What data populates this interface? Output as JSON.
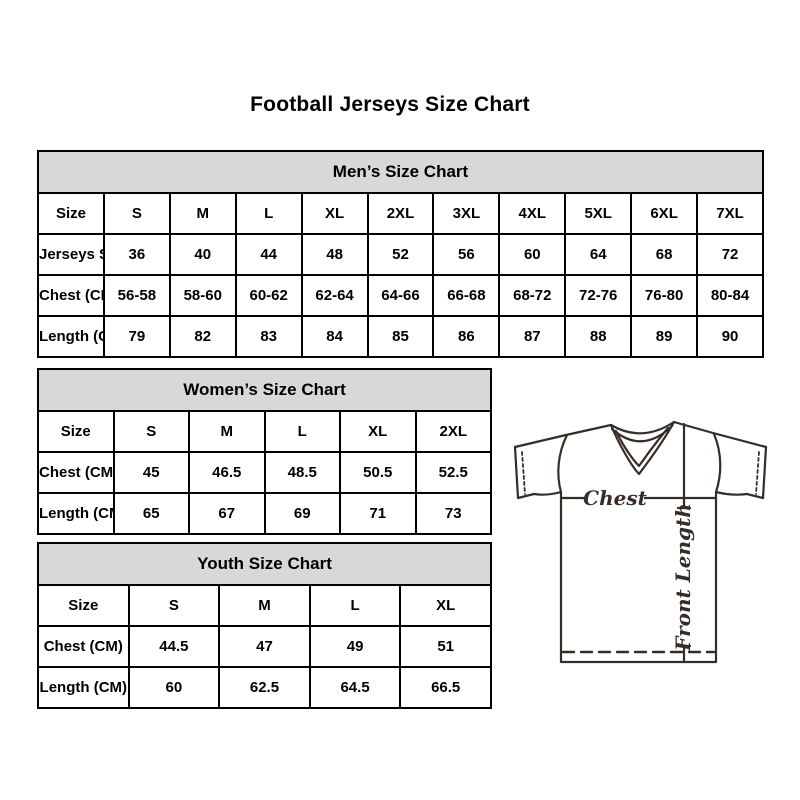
{
  "page": {
    "title": "Football Jerseys Size Chart"
  },
  "colors": {
    "header_bg": "#d8d8d8",
    "table_border": "#000000",
    "diagram_line": "#372d28",
    "background": "#ffffff"
  },
  "diagram": {
    "chest_label": "Chest",
    "front_length_label": "Front Length"
  },
  "chart_data": [
    {
      "type": "table",
      "title": "Men’s Size Chart",
      "rows": [
        {
          "label": "Size",
          "values": [
            "S",
            "M",
            "L",
            "XL",
            "2XL",
            "3XL",
            "4XL",
            "5XL",
            "6XL",
            "7XL"
          ]
        },
        {
          "label": "Jerseys Size",
          "values": [
            "36",
            "40",
            "44",
            "48",
            "52",
            "56",
            "60",
            "64",
            "68",
            "72"
          ]
        },
        {
          "label": "Chest (CM)",
          "values": [
            "56-58",
            "58-60",
            "60-62",
            "62-64",
            "64-66",
            "66-68",
            "68-72",
            "72-76",
            "76-80",
            "80-84"
          ]
        },
        {
          "label": "Length (CM)",
          "values": [
            "79",
            "82",
            "83",
            "84",
            "85",
            "86",
            "87",
            "88",
            "89",
            "90"
          ]
        }
      ]
    },
    {
      "type": "table",
      "title": "Women’s Size Chart",
      "rows": [
        {
          "label": "Size",
          "values": [
            "S",
            "M",
            "L",
            "XL",
            "2XL"
          ]
        },
        {
          "label": "Chest (CM)",
          "values": [
            "45",
            "46.5",
            "48.5",
            "50.5",
            "52.5"
          ]
        },
        {
          "label": "Length (CM)",
          "values": [
            "65",
            "67",
            "69",
            "71",
            "73"
          ]
        }
      ]
    },
    {
      "type": "table",
      "title": "Youth Size Chart",
      "rows": [
        {
          "label": "Size",
          "values": [
            "S",
            "M",
            "L",
            "XL"
          ]
        },
        {
          "label": "Chest (CM)",
          "values": [
            "44.5",
            "47",
            "49",
            "51"
          ]
        },
        {
          "label": "Length (CM)",
          "values": [
            "60",
            "62.5",
            "64.5",
            "66.5"
          ]
        }
      ]
    }
  ]
}
